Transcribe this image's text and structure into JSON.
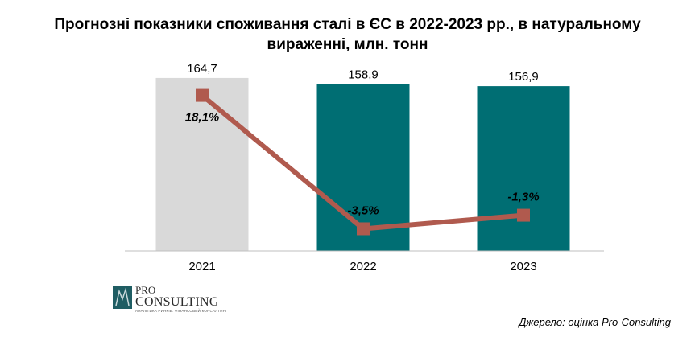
{
  "chart_data": {
    "type": "bar",
    "title": "Прогнозні показники споживання сталі в ЄС в 2022-2023 рр., в натуральному вираженні, млн. тонн",
    "title_lines": [
      "Прогнозні показники споживання сталі в ЄС в 2022-2023 рр., в натуральному",
      "вираженні, млн. тонн"
    ],
    "categories": [
      "2021",
      "2022",
      "2023"
    ],
    "values": [
      164.7,
      158.9,
      156.9
    ],
    "value_labels": [
      "164,7",
      "158,9",
      "156,9"
    ],
    "bar_colors": [
      "#d9d9d9",
      "#006e73",
      "#006e73"
    ],
    "ylim": [
      0,
      170
    ],
    "line": {
      "values": [
        18.1,
        -3.5,
        -1.3
      ],
      "labels": [
        "18,1%",
        "-3,5%",
        "-1,3%"
      ],
      "color": "#b05a4e",
      "ylim": [
        -5,
        20
      ]
    }
  },
  "logo": {
    "pro": "PRO",
    "consulting": "CONSULTING",
    "tagline": "АНАЛІТИКА РИНКІВ. ФІНАНСОВИЙ КОНСАЛТИНГ"
  },
  "source": "Джерело: оцінка Pro-Consulting"
}
